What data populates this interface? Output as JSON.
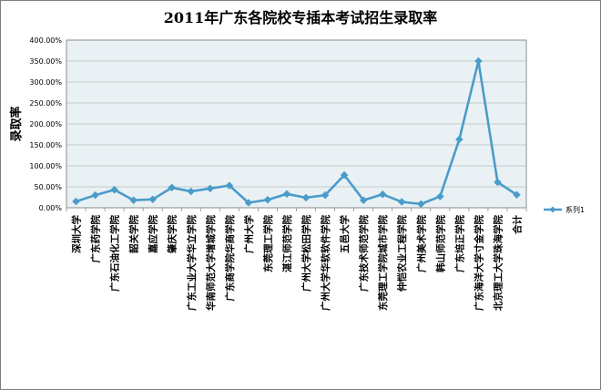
{
  "chart_data": {
    "type": "line",
    "title": "2011年广东各院校专插本考试招生录取率",
    "ylabel": "录取率",
    "xlabel": "",
    "ylim": [
      0,
      400
    ],
    "y_ticks": [
      "0.00%",
      "50.00%",
      "100.00%",
      "150.00%",
      "200.00%",
      "250.00%",
      "300.00%",
      "350.00%",
      "400.00%"
    ],
    "grid": true,
    "legend_position": "right",
    "categories": [
      "深圳大学",
      "广东药学院",
      "广东石油化工学院",
      "韶关学院",
      "嘉应学院",
      "肇庆学院",
      "广东工业大学华立学院",
      "华南师范大学增城学院",
      "广东商学院华商学院",
      "广州大学",
      "东莞理工学院",
      "湛江师范学院",
      "广州大学松田学院",
      "广州大学华软软件学院",
      "五邑大学",
      "广东技术师范学院",
      "东莞理工学院城市学院",
      "仲恺农业工程学院",
      "广州美术学院",
      "韩山师范学院",
      "广东培正学院",
      "广东海洋大学寸金学院",
      "北京理工大学珠海学院",
      "合计"
    ],
    "series": [
      {
        "name": "系列1",
        "color": "#4a9cc9",
        "values": [
          15,
          30,
          43,
          18,
          20,
          48,
          39,
          46,
          53,
          12,
          19,
          33,
          24,
          30,
          78,
          18,
          32,
          14,
          9,
          27,
          163,
          350,
          61,
          31
        ]
      }
    ]
  }
}
